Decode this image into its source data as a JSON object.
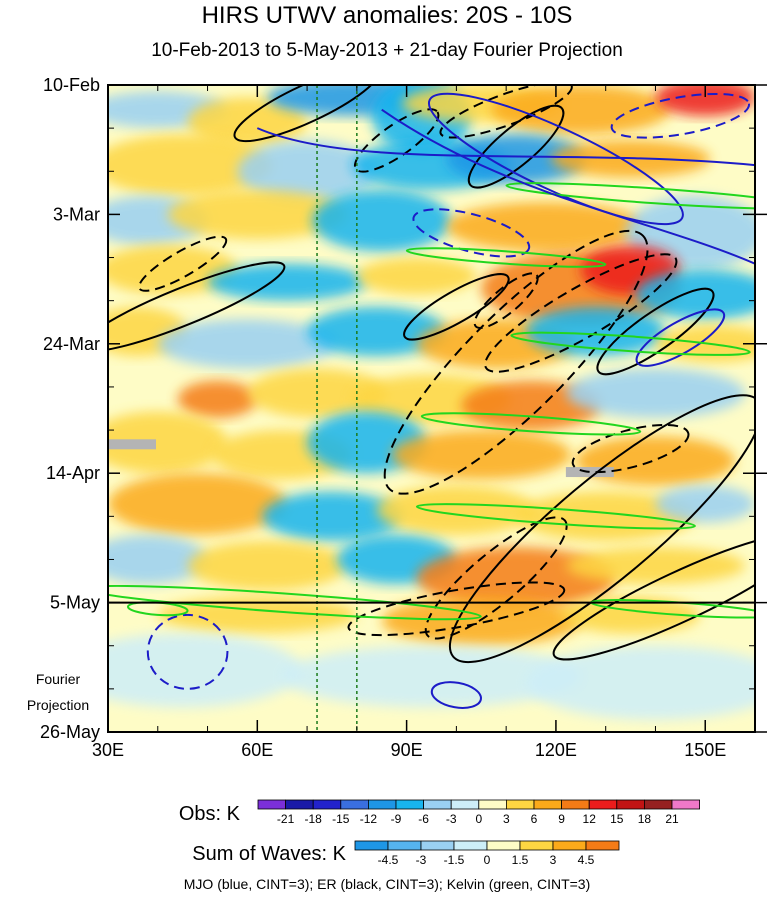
{
  "chart_data": {
    "type": "heatmap",
    "title": "HIRS UTWV anomalies: 20S - 10S",
    "subtitle": "10-Feb-2013 to 5-May-2013 + 21-day Fourier Projection",
    "x_axis": {
      "ticks": [
        "30E",
        "60E",
        "90E",
        "120E",
        "150E"
      ],
      "tick_values": [
        30,
        60,
        90,
        120,
        150
      ],
      "range": [
        30,
        160
      ]
    },
    "y_axis": {
      "ticks": [
        "10-Feb",
        "3-Mar",
        "24-Mar",
        "14-Apr",
        "5-May",
        "26-May"
      ],
      "day_index": [
        0,
        21,
        42,
        63,
        84,
        105
      ]
    },
    "projection_label": [
      "Fourier",
      "Projection"
    ],
    "projection_start_day": 84,
    "reference_lines_lon": [
      72,
      80
    ],
    "obs_colorbar": {
      "title": "Obs: K",
      "levels": [
        "-21",
        "-18",
        "-15",
        "-12",
        "-9",
        "-6",
        "-3",
        "0",
        "3",
        "6",
        "9",
        "12",
        "15",
        "18",
        "21"
      ],
      "colors": [
        "#7b2fd9",
        "#1a1aa8",
        "#2222cc",
        "#3a6fe0",
        "#1e96e6",
        "#18b4ee",
        "#9ad0f2",
        "#cdeef8",
        "#fefcc6",
        "#fdd642",
        "#fbaa1a",
        "#f47b16",
        "#ec1c1c",
        "#c21414",
        "#962020",
        "#f078c8"
      ]
    },
    "waves_colorbar": {
      "title": "Sum of Waves: K",
      "levels": [
        "-4.5",
        "-3",
        "-1.5",
        "0",
        "1.5",
        "3",
        "4.5"
      ],
      "colors": [
        "#1e96e6",
        "#55b4ee",
        "#9ad0f2",
        "#cdeef8",
        "#fefcc6",
        "#fdd642",
        "#fbaa1a",
        "#f47b16"
      ]
    },
    "legend_note": "MJO (blue, CINT=3); ER (black, CINT=3); Kelvin (green, CINT=3)"
  },
  "colors": {
    "mjo": "#1c1cc8",
    "er": "#000000",
    "kelvin": "#22d61e",
    "refline": "#1a7a1a"
  }
}
